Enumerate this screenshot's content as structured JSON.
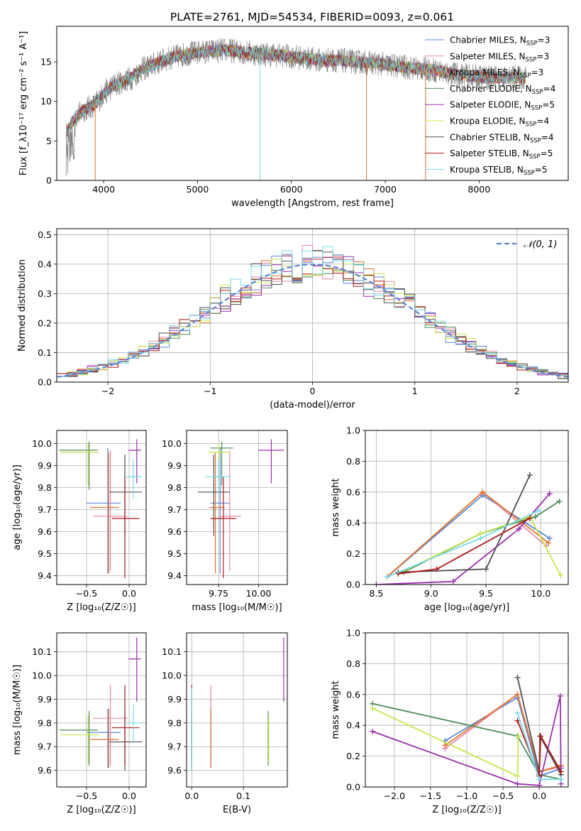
{
  "figure_title": "PLATE=2761, MJD=54534, FIBERID=0093, z=0.061",
  "colors": {
    "Chabrier MILES": "#5b86d6",
    "Salpeter MILES": "#e88aa8",
    "Kroupa MILES": "#e0742c",
    "Chabrier ELODIE": "#4d8a58",
    "Salpeter ELODIE": "#9a2fae",
    "Kroupa ELODIE": "#c6e84a",
    "Chabrier STELIB": "#505050",
    "Salpeter STELIB": "#b01818",
    "Kroupa STELIB": "#78dbe6",
    "normal_curve": "#5b86d6",
    "data_spectrum": "#808080",
    "grid": "#b0b0b0"
  },
  "chart_data": [
    {
      "id": "spectrum",
      "type": "line",
      "title": "PLATE=2761, MJD=54534, FIBERID=0093, z=0.061",
      "xlabel": "wavelength [Angstrom, rest frame]",
      "ylabel": "Flux [f_λ10⁻¹⁷ erg cm⁻² s⁻¹ A⁻¹]",
      "xlim": [
        3500,
        8950
      ],
      "ylim": [
        0,
        19.5
      ],
      "xticks": [
        4000,
        5000,
        6000,
        7000,
        8000
      ],
      "yticks": [
        0,
        5,
        10,
        15
      ],
      "grid": false,
      "legend_placement": "upper right",
      "legend": [
        {
          "label": "Chabrier MILES, N",
          "sub": "SSP",
          "tail": "=3"
        },
        {
          "label": "Salpeter MILES, N",
          "sub": "SSP",
          "tail": "=3"
        },
        {
          "label": "Kroupa MILES, N",
          "sub": "SSP",
          "tail": "=3"
        },
        {
          "label": "Chabrier ELODIE, N",
          "sub": "SSP",
          "tail": "=4"
        },
        {
          "label": "Salpeter ELODIE, N",
          "sub": "SSP",
          "tail": "=5"
        },
        {
          "label": "Kroupa ELODIE, N",
          "sub": "SSP",
          "tail": "=4"
        },
        {
          "label": "Chabrier STELIB, N",
          "sub": "SSP",
          "tail": "=4"
        },
        {
          "label": "Salpeter STELIB, N",
          "sub": "SSP",
          "tail": "=5"
        },
        {
          "label": "Kroupa STELIB, N",
          "sub": "SSP",
          "tail": "=5"
        }
      ],
      "continuum": {
        "x": [
          3600,
          3700,
          3800,
          3900,
          4000,
          4100,
          4200,
          4300,
          4400,
          4500,
          4700,
          4900,
          5100,
          5300,
          5500,
          5700,
          5900,
          6100,
          6300,
          6500,
          6700,
          6900,
          7100,
          7300,
          7500,
          7700,
          7900,
          8100,
          8300,
          8500
        ],
        "y": [
          6,
          8,
          9,
          9.5,
          11,
          12,
          12.5,
          13,
          14,
          14.5,
          15.5,
          16,
          16.3,
          16.5,
          16.2,
          16,
          15.8,
          15.5,
          15.2,
          15.2,
          15,
          14.8,
          14.5,
          14.2,
          14,
          13.5,
          13.2,
          13,
          13,
          13
        ]
      },
      "model_dips": [
        {
          "x": 3910,
          "y": 0
        },
        {
          "x": 5665,
          "y": 0
        },
        {
          "x": 6800,
          "y": 0
        },
        {
          "x": 7430,
          "y": 0
        }
      ]
    },
    {
      "id": "residuals",
      "type": "histogram",
      "xlabel": "(data-model)/error",
      "ylabel": "Normed distribution",
      "xlim": [
        -2.5,
        2.5
      ],
      "ylim": [
        0,
        0.52
      ],
      "xticks": [
        -2,
        -1,
        0,
        1,
        2
      ],
      "yticks": [
        0.0,
        0.1,
        0.2,
        0.3,
        0.4,
        0.5
      ],
      "grid": true,
      "legend_placement": "upper right",
      "legend": [
        "𝒩(0, 1)"
      ],
      "bin_width": 0.1,
      "bins_start": -2.5,
      "gaussian": {
        "mu": 0,
        "sigma": 1
      }
    },
    {
      "id": "age_vs_Z",
      "type": "errorbar",
      "xlabel": "Z [log₁₀(Z/Z☉)]",
      "ylabel": "age  [log₁₀(age/yr)]",
      "xlim": [
        -0.85,
        0.2
      ],
      "ylim": [
        9.36,
        10.06
      ],
      "xticks": [
        -0.5,
        0.0
      ],
      "yticks": [
        9.4,
        9.5,
        9.6,
        9.7,
        9.8,
        9.9,
        10.0
      ],
      "grid": true,
      "series": [
        {
          "name": "Chabrier MILES",
          "x": -0.25,
          "y": 9.73,
          "xerr": [
            0.25,
            0.15
          ],
          "yerr": [
            0.32,
            0.25
          ]
        },
        {
          "name": "Salpeter MILES",
          "x": -0.22,
          "y": 9.67,
          "xerr": [
            0.2,
            0.2
          ],
          "yerr": [
            0.25,
            0.3
          ]
        },
        {
          "name": "Kroupa MILES",
          "x": -0.24,
          "y": 9.71,
          "xerr": [
            0.22,
            0.12
          ],
          "yerr": [
            0.3,
            0.25
          ]
        },
        {
          "name": "Chabrier ELODIE",
          "x": -0.47,
          "y": 9.97,
          "xerr": [
            0.35,
            0.1
          ],
          "yerr": [
            0.18,
            0.04
          ]
        },
        {
          "name": "Salpeter ELODIE",
          "x": 0.09,
          "y": 9.97,
          "xerr": [
            0.1,
            0.05
          ],
          "yerr": [
            0.15,
            0.05
          ]
        },
        {
          "name": "Kroupa ELODIE",
          "x": -0.48,
          "y": 9.96,
          "xerr": [
            0.33,
            0.12
          ],
          "yerr": [
            0.15,
            0.04
          ]
        },
        {
          "name": "Chabrier STELIB",
          "x": -0.05,
          "y": 9.78,
          "xerr": [
            0.18,
            0.2
          ],
          "yerr": [
            0.2,
            0.17
          ]
        },
        {
          "name": "Salpeter STELIB",
          "x": -0.05,
          "y": 9.66,
          "xerr": [
            0.15,
            0.17
          ],
          "yerr": [
            0.27,
            0.19
          ]
        },
        {
          "name": "Kroupa STELIB",
          "x": 0.05,
          "y": 9.85,
          "xerr": [
            0.1,
            0.1
          ],
          "yerr": [
            0.1,
            0.08
          ]
        }
      ]
    },
    {
      "id": "age_vs_mass",
      "type": "errorbar",
      "xlabel": "mass [log₁₀(M/M☉)]",
      "ylabel": "",
      "xlim": [
        9.55,
        10.18
      ],
      "ylim": [
        9.36,
        10.06
      ],
      "xticks": [
        9.75,
        10.0
      ],
      "yticks": [
        9.4,
        9.5,
        9.6,
        9.7,
        9.8,
        9.9,
        10.0
      ],
      "grid": true,
      "series": [
        {
          "name": "Chabrier MILES",
          "x": 9.76,
          "y": 9.73,
          "xerr": [
            0.06,
            0.06
          ],
          "yerr": [
            0.32,
            0.25
          ]
        },
        {
          "name": "Salpeter MILES",
          "x": 9.82,
          "y": 9.67,
          "xerr": [
            0.07,
            0.07
          ],
          "yerr": [
            0.25,
            0.3
          ]
        },
        {
          "name": "Kroupa MILES",
          "x": 9.73,
          "y": 9.71,
          "xerr": [
            0.04,
            0.06
          ],
          "yerr": [
            0.3,
            0.25
          ]
        },
        {
          "name": "Chabrier ELODIE",
          "x": 9.77,
          "y": 9.98,
          "xerr": [
            0.07,
            0.07
          ],
          "yerr": [
            0.17,
            0.03
          ]
        },
        {
          "name": "Salpeter ELODIE",
          "x": 10.08,
          "y": 9.97,
          "xerr": [
            0.08,
            0.08
          ],
          "yerr": [
            0.15,
            0.05
          ]
        },
        {
          "name": "Kroupa ELODIE",
          "x": 9.75,
          "y": 9.96,
          "xerr": [
            0.07,
            0.07
          ],
          "yerr": [
            0.15,
            0.04
          ]
        },
        {
          "name": "Chabrier STELIB",
          "x": 9.72,
          "y": 9.78,
          "xerr": [
            0.1,
            0.1
          ],
          "yerr": [
            0.2,
            0.17
          ]
        },
        {
          "name": "Salpeter STELIB",
          "x": 9.78,
          "y": 9.66,
          "xerr": [
            0.08,
            0.08
          ],
          "yerr": [
            0.27,
            0.19
          ]
        },
        {
          "name": "Kroupa STELIB",
          "x": 9.75,
          "y": 9.85,
          "xerr": [
            0.08,
            0.08
          ],
          "yerr": [
            0.08,
            0.08
          ]
        }
      ]
    },
    {
      "id": "weight_vs_age",
      "type": "line",
      "xlabel": "age  [log₁₀(age/yr)]",
      "ylabel": "mass weight",
      "xlim": [
        8.4,
        10.25
      ],
      "ylim": [
        0,
        1
      ],
      "xticks": [
        8.5,
        9.0,
        9.5,
        10.0
      ],
      "yticks": [
        0.0,
        0.2,
        0.4,
        0.6,
        0.8,
        1.0
      ],
      "grid": true,
      "series": [
        {
          "name": "Chabrier MILES",
          "x": [
            8.6,
            9.47,
            10.08
          ],
          "y": [
            0.05,
            0.58,
            0.3
          ]
        },
        {
          "name": "Salpeter MILES",
          "x": [
            8.6,
            9.47,
            10.05
          ],
          "y": [
            0.05,
            0.6,
            0.25
          ]
        },
        {
          "name": "Kroupa MILES",
          "x": [
            8.6,
            9.47,
            10.07
          ],
          "y": [
            0.05,
            0.6,
            0.27
          ]
        },
        {
          "name": "Chabrier ELODIE",
          "x": [
            8.75,
            9.45,
            9.95,
            10.17
          ],
          "y": [
            0.08,
            0.33,
            0.44,
            0.54
          ]
        },
        {
          "name": "Salpeter ELODIE",
          "x": [
            8.5,
            9.2,
            9.8,
            10.08
          ],
          "y": [
            0.0,
            0.02,
            0.36,
            0.59
          ]
        },
        {
          "name": "Kroupa ELODIE",
          "x": [
            8.7,
            9.45,
            9.9,
            10.18
          ],
          "y": [
            0.07,
            0.33,
            0.44,
            0.06
          ]
        },
        {
          "name": "Chabrier STELIB",
          "x": [
            8.7,
            9.5,
            9.9
          ],
          "y": [
            0.08,
            0.1,
            0.71
          ]
        },
        {
          "name": "Salpeter STELIB",
          "x": [
            8.7,
            9.05,
            9.9
          ],
          "y": [
            0.07,
            0.1,
            0.43
          ]
        },
        {
          "name": "Kroupa STELIB",
          "x": [
            8.6,
            9.45,
            9.98
          ],
          "y": [
            0.05,
            0.3,
            0.48
          ]
        }
      ]
    },
    {
      "id": "mass_vs_Z",
      "type": "errorbar",
      "xlabel": "Z [log₁₀(Z/Z☉)]",
      "ylabel": "mass [log₁₀(M/M☉)]",
      "xlim": [
        -0.85,
        0.2
      ],
      "ylim": [
        9.53,
        10.18
      ],
      "xticks": [
        -0.5,
        0.0
      ],
      "yticks": [
        9.6,
        9.7,
        9.8,
        9.9,
        10.0,
        10.1
      ],
      "grid": true,
      "series": [
        {
          "name": "Chabrier MILES",
          "x": -0.25,
          "y": 9.76,
          "xerr": [
            0.25,
            0.15
          ],
          "yerr": [
            0.15,
            0.1
          ]
        },
        {
          "name": "Salpeter MILES",
          "x": -0.22,
          "y": 9.82,
          "xerr": [
            0.2,
            0.2
          ],
          "yerr": [
            0.2,
            0.14
          ]
        },
        {
          "name": "Kroupa MILES",
          "x": -0.24,
          "y": 9.73,
          "xerr": [
            0.22,
            0.12
          ],
          "yerr": [
            0.12,
            0.13
          ]
        },
        {
          "name": "Chabrier ELODIE",
          "x": -0.47,
          "y": 9.77,
          "xerr": [
            0.35,
            0.1
          ],
          "yerr": [
            0.15,
            0.08
          ]
        },
        {
          "name": "Salpeter ELODIE",
          "x": 0.09,
          "y": 10.07,
          "xerr": [
            0.1,
            0.05
          ],
          "yerr": [
            0.18,
            0.09
          ]
        },
        {
          "name": "Kroupa ELODIE",
          "x": -0.48,
          "y": 9.75,
          "xerr": [
            0.33,
            0.12
          ],
          "yerr": [
            0.12,
            0.08
          ]
        },
        {
          "name": "Chabrier STELIB",
          "x": -0.05,
          "y": 9.72,
          "xerr": [
            0.18,
            0.2
          ],
          "yerr": [
            0.12,
            0.12
          ]
        },
        {
          "name": "Salpeter STELIB",
          "x": -0.05,
          "y": 9.78,
          "xerr": [
            0.15,
            0.17
          ],
          "yerr": [
            0.16,
            0.18
          ]
        },
        {
          "name": "Kroupa STELIB",
          "x": 0.05,
          "y": 9.8,
          "xerr": [
            0.1,
            0.1
          ],
          "yerr": [
            0.08,
            0.08
          ]
        }
      ]
    },
    {
      "id": "mass_vs_ebv",
      "type": "errorbar",
      "xlabel": "E(B-V)",
      "ylabel": "",
      "xlim": [
        -0.01,
        0.185
      ],
      "ylim": [
        9.53,
        10.18
      ],
      "xticks": [
        0.0,
        0.1
      ],
      "yticks": [
        9.6,
        9.7,
        9.8,
        9.9,
        10.0,
        10.1
      ],
      "grid": true,
      "series": [
        {
          "name": "Chabrier MILES",
          "x": 0.037,
          "y": 9.76,
          "xerr": [
            0,
            0
          ],
          "yerr": [
            0.15,
            0.1
          ]
        },
        {
          "name": "Salpeter MILES",
          "x": 0.037,
          "y": 9.82,
          "xerr": [
            0,
            0
          ],
          "yerr": [
            0.2,
            0.14
          ]
        },
        {
          "name": "Kroupa MILES",
          "x": 0.037,
          "y": 9.73,
          "xerr": [
            0,
            0
          ],
          "yerr": [
            0.12,
            0.13
          ]
        },
        {
          "name": "Chabrier ELODIE",
          "x": 0.148,
          "y": 9.77,
          "xerr": [
            0,
            0
          ],
          "yerr": [
            0.15,
            0.08
          ]
        },
        {
          "name": "Salpeter ELODIE",
          "x": 0.178,
          "y": 10.07,
          "xerr": [
            0,
            0
          ],
          "yerr": [
            0.18,
            0.09
          ]
        },
        {
          "name": "Kroupa ELODIE",
          "x": 0.149,
          "y": 9.75,
          "xerr": [
            0,
            0
          ],
          "yerr": [
            0.12,
            0.08
          ]
        },
        {
          "name": "Chabrier STELIB",
          "x": 0.0,
          "y": 9.72,
          "xerr": [
            0,
            0
          ],
          "yerr": [
            0.12,
            0.12
          ]
        },
        {
          "name": "Salpeter STELIB",
          "x": 0.0,
          "y": 9.78,
          "xerr": [
            0,
            0
          ],
          "yerr": [
            0.16,
            0.18
          ]
        },
        {
          "name": "Kroupa STELIB",
          "x": 0.0,
          "y": 9.8,
          "xerr": [
            0,
            0
          ],
          "yerr": [
            0.2,
            0.15
          ]
        }
      ]
    },
    {
      "id": "weight_vs_Z",
      "type": "line",
      "xlabel": "Z [log₁₀(Z/Z☉)]",
      "ylabel": "mass weight",
      "xlim": [
        -2.4,
        0.4
      ],
      "ylim": [
        0,
        1
      ],
      "xticks": [
        -2.0,
        -1.5,
        -1.0,
        -0.5,
        0.0
      ],
      "yticks": [
        0.0,
        0.2,
        0.4,
        0.6,
        0.8,
        1.0
      ],
      "grid": true,
      "series": [
        {
          "name": "Chabrier MILES",
          "x": [
            -1.3,
            -0.3,
            0.0,
            0.3
          ],
          "y": [
            0.3,
            0.58,
            0.07,
            0.12
          ]
        },
        {
          "name": "Salpeter MILES",
          "x": [
            -1.3,
            -0.3,
            0.0,
            0.3
          ],
          "y": [
            0.25,
            0.6,
            0.1,
            0.13
          ]
        },
        {
          "name": "Kroupa MILES",
          "x": [
            -1.3,
            -0.3,
            0.0,
            0.3
          ],
          "y": [
            0.27,
            0.6,
            0.1,
            0.14
          ]
        },
        {
          "name": "Chabrier ELODIE",
          "x": [
            -2.3,
            -0.3,
            0.0,
            0.3
          ],
          "y": [
            0.54,
            0.33,
            0.08,
            0.05
          ]
        },
        {
          "name": "Salpeter ELODIE",
          "x": [
            -2.3,
            -0.3,
            0.0,
            0.29,
            0.3
          ],
          "y": [
            0.36,
            0.02,
            0.01,
            0.59,
            0.02
          ]
        },
        {
          "name": "Kroupa ELODIE",
          "x": [
            -2.3,
            -0.3,
            -0.29
          ],
          "y": [
            0.51,
            0.07,
            0.33
          ]
        },
        {
          "name": "Chabrier STELIB",
          "x": [
            -0.3,
            0.0,
            0.01,
            0.3
          ],
          "y": [
            0.71,
            0.1,
            0.33,
            0.08
          ]
        },
        {
          "name": "Salpeter STELIB",
          "x": [
            -0.3,
            0.0,
            0.02,
            0.3
          ],
          "y": [
            0.43,
            0.07,
            0.33,
            0.1
          ]
        },
        {
          "name": "Kroupa STELIB",
          "x": [
            -0.3,
            0.0,
            0.3
          ],
          "y": [
            0.48,
            0.05,
            0.05
          ]
        }
      ]
    }
  ]
}
